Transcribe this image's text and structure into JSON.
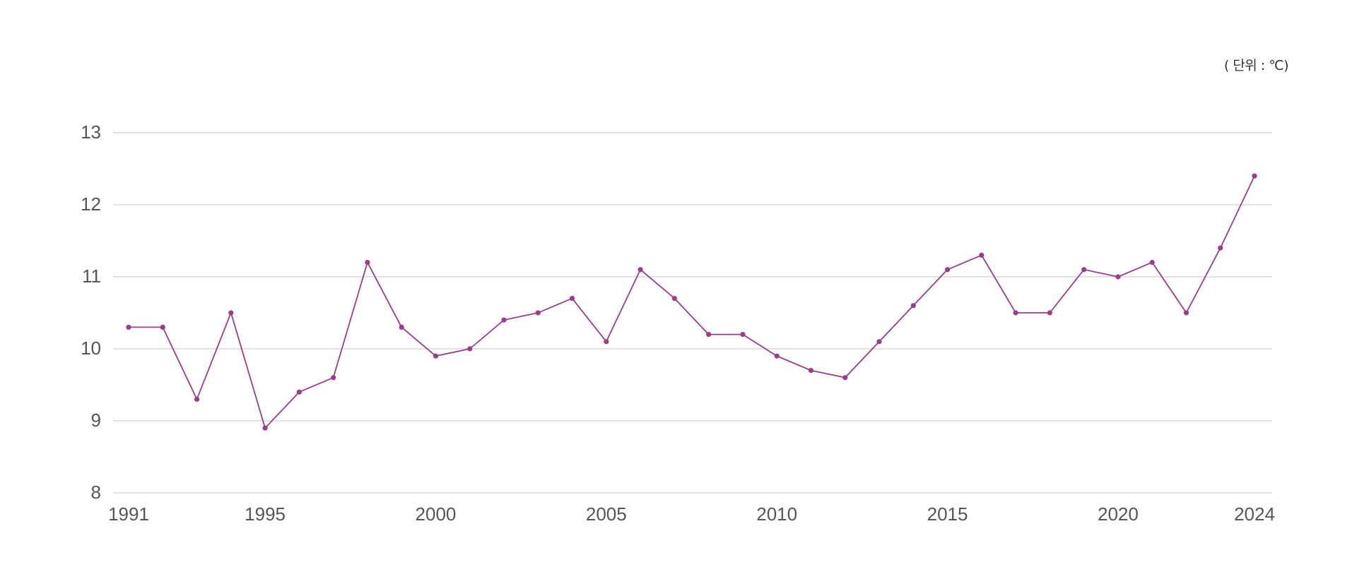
{
  "chart_data": {
    "type": "line",
    "unit_label": "( 단위 : ℃)",
    "x": [
      1991,
      1992,
      1993,
      1994,
      1995,
      1996,
      1997,
      1998,
      1999,
      2000,
      2001,
      2002,
      2003,
      2004,
      2005,
      2006,
      2007,
      2008,
      2009,
      2010,
      2011,
      2012,
      2013,
      2014,
      2015,
      2016,
      2017,
      2018,
      2019,
      2020,
      2021,
      2022,
      2023,
      2024
    ],
    "series": [
      {
        "values": [
          10.3,
          10.3,
          9.3,
          10.5,
          8.9,
          9.4,
          9.6,
          11.2,
          10.3,
          9.9,
          10.0,
          10.4,
          10.5,
          10.7,
          10.1,
          11.1,
          10.7,
          10.2,
          10.2,
          9.9,
          9.7,
          9.6,
          10.1,
          10.6,
          11.1,
          11.3,
          10.5,
          10.5,
          11.1,
          11.0,
          11.2,
          10.5,
          11.4,
          12.4
        ],
        "color": "#9b3c8c"
      }
    ],
    "xticks": [
      "1991",
      "1995",
      "2000",
      "2005",
      "2010",
      "2015",
      "2020",
      "2024"
    ],
    "yticks": [
      "8",
      "9",
      "10",
      "11",
      "12",
      "13"
    ],
    "ylim": [
      8,
      13
    ],
    "xlim": [
      1991,
      2024
    ],
    "grid": true,
    "gridline_color": "#d0d0d0"
  }
}
